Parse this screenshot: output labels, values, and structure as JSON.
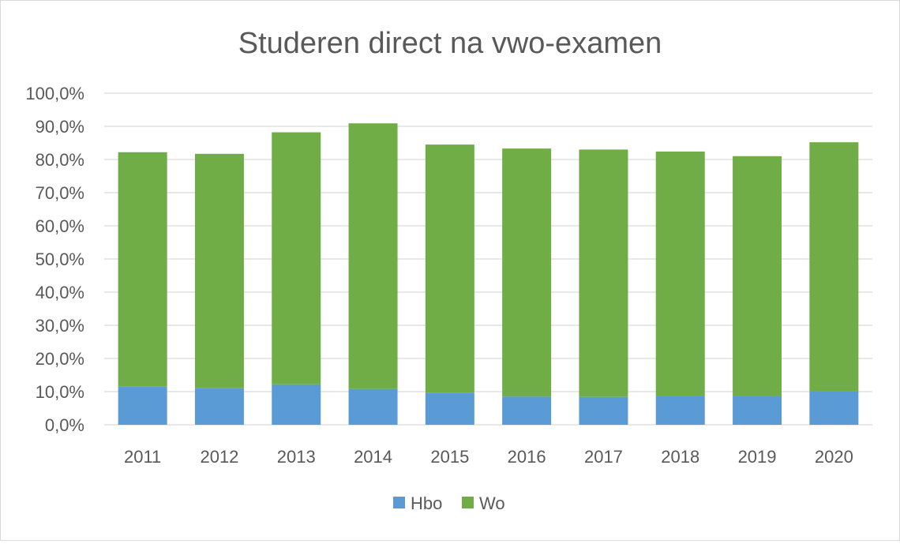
{
  "chart_data": {
    "type": "bar",
    "stacked": true,
    "title": "Studeren direct na vwo-examen",
    "categories": [
      "2011",
      "2012",
      "2013",
      "2014",
      "2015",
      "2016",
      "2017",
      "2018",
      "2019",
      "2020"
    ],
    "series": [
      {
        "name": "Hbo",
        "color": "#5b9bd5",
        "values": [
          11.5,
          11.0,
          12.2,
          10.8,
          9.7,
          8.5,
          8.4,
          8.8,
          8.7,
          10.1
        ]
      },
      {
        "name": "Wo",
        "color": "#70ad47",
        "values": [
          70.7,
          70.7,
          76.0,
          80.1,
          74.8,
          74.8,
          74.6,
          73.6,
          72.3,
          75.1
        ]
      }
    ],
    "ylim": [
      0,
      100
    ],
    "yticks": [
      0,
      10,
      20,
      30,
      40,
      50,
      60,
      70,
      80,
      90,
      100
    ],
    "ytick_labels": [
      "0,0%",
      "10,0%",
      "20,0%",
      "30,0%",
      "40,0%",
      "50,0%",
      "60,0%",
      "70,0%",
      "80,0%",
      "90,0%",
      "100,0%"
    ],
    "grid": true,
    "legend_position": "bottom"
  }
}
